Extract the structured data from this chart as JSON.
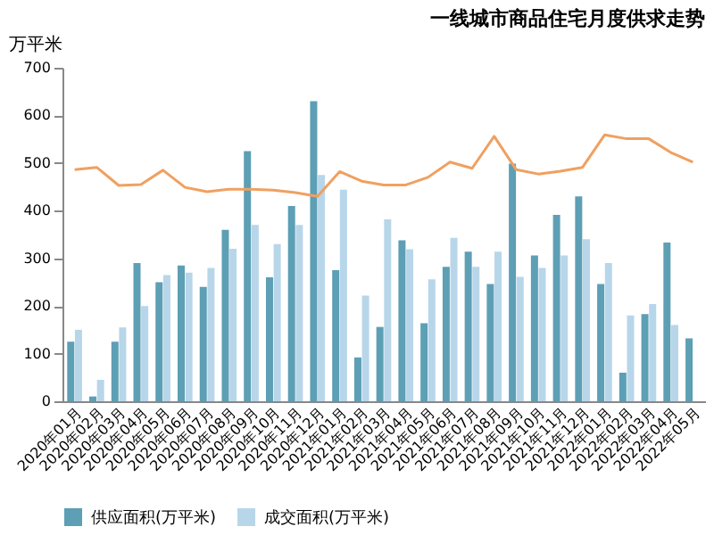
{
  "chart_data": {
    "type": "bar",
    "title": "一线城市商品住宅月度供求走势",
    "ylabel": "万平米",
    "categories": [
      "2020年01月",
      "2020年02月",
      "2020年03月",
      "2020年04月",
      "2020年05月",
      "2020年06月",
      "2020年07月",
      "2020年08月",
      "2020年09月",
      "2020年10月",
      "2020年11月",
      "2020年12月",
      "2021年01月",
      "2021年02月",
      "2021年03月",
      "2021年04月",
      "2021年05月",
      "2021年06月",
      "2021年07月",
      "2021年08月",
      "2021年09月",
      "2021年10月",
      "2021年11月",
      "2021年12月",
      "2022年01月",
      "2022年02月",
      "2022年03月",
      "2022年04月",
      "2022年05月"
    ],
    "series": [
      {
        "name": "供应面积(万平米)",
        "color": "#5d9fb5",
        "values": [
          125,
          10,
          125,
          290,
          250,
          285,
          240,
          360,
          525,
          260,
          410,
          630,
          275,
          92,
          156,
          338,
          164,
          282,
          314,
          246,
          499,
          306,
          391,
          430,
          246,
          60,
          183,
          333,
          132
        ]
      },
      {
        "name": "成交面积(万平米)",
        "color": "#b8d6ea",
        "values": [
          150,
          45,
          155,
          200,
          265,
          270,
          280,
          320,
          370,
          330,
          370,
          475,
          444,
          222,
          382,
          319,
          256,
          343,
          282,
          314,
          261,
          280,
          306,
          340,
          290,
          180,
          204,
          160,
          null
        ]
      },
      {
        "type": "line",
        "color": "#f0a060",
        "values": [
          486,
          491,
          453,
          455,
          485,
          449,
          440,
          445,
          445,
          443,
          438,
          430,
          482,
          462,
          454,
          454,
          470,
          502,
          489,
          556,
          486,
          477,
          483,
          491,
          559,
          551,
          551,
          522,
          502
        ]
      }
    ],
    "ylim": [
      0,
      700
    ],
    "yticks": [
      0,
      100,
      200,
      300,
      400,
      500,
      600,
      700
    ],
    "grid": false,
    "legend": "bottom"
  }
}
